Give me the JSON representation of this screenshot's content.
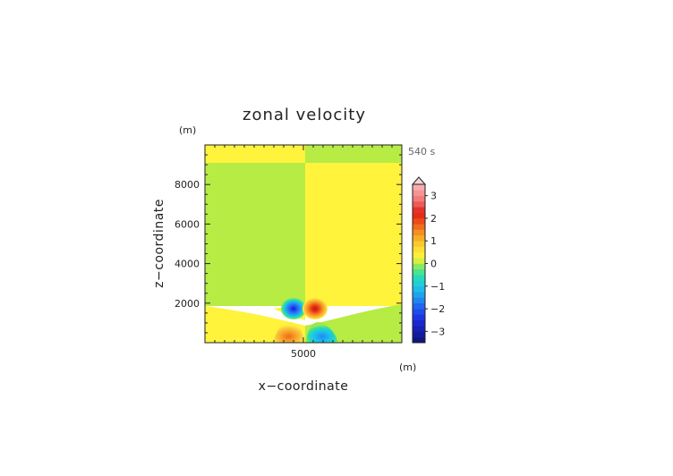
{
  "chart_data": {
    "type": "heatmap",
    "title": "zonal velocity",
    "time_label": "540 s",
    "xlabel": "x−coordinate",
    "ylabel": "z−coordinate",
    "x_unit": "(m)",
    "y_unit": "(m)",
    "xlim": [
      0,
      10000
    ],
    "ylim": [
      0,
      10000
    ],
    "x_ticks": [
      {
        "value": 5000,
        "label": "5000"
      }
    ],
    "y_ticks": [
      {
        "value": 2000,
        "label": "2000"
      },
      {
        "value": 4000,
        "label": "4000"
      },
      {
        "value": 6000,
        "label": "6000"
      },
      {
        "value": 8000,
        "label": "8000"
      }
    ],
    "colorbar": {
      "min": -3.5,
      "max": 3.5,
      "step": 0.25,
      "extend": "max",
      "tick_values": [
        3,
        2,
        1,
        0,
        -1,
        -2,
        -3
      ],
      "tick_labels": [
        "3",
        "2",
        "1",
        "0",
        "−1",
        "−2",
        "−3"
      ]
    },
    "features": [
      {
        "name": "upper-left region",
        "x": [
          0,
          5000
        ],
        "z": [
          9100,
          10000
        ],
        "value": 0.15
      },
      {
        "name": "upper-right region",
        "x": [
          5000,
          10000
        ],
        "z": [
          9100,
          10000
        ],
        "value": -0.05
      },
      {
        "name": "left column",
        "x": [
          0,
          5000
        ],
        "z": [
          1300,
          9100
        ],
        "value": -0.2
      },
      {
        "name": "right column",
        "x": [
          5000,
          10000
        ],
        "z": [
          1300,
          9100
        ],
        "value": 0.15
      },
      {
        "name": "negative vortex",
        "x": 4500,
        "z": 1800,
        "value": -2.2
      },
      {
        "name": "positive vortex",
        "x": 5450,
        "z": 1800,
        "value": 1.9
      },
      {
        "name": "positive lobe near ground",
        "x": 4150,
        "z": 400,
        "value": 1.3
      },
      {
        "name": "negative lobe near ground",
        "x": 5650,
        "z": 400,
        "value": -1.5
      }
    ]
  }
}
